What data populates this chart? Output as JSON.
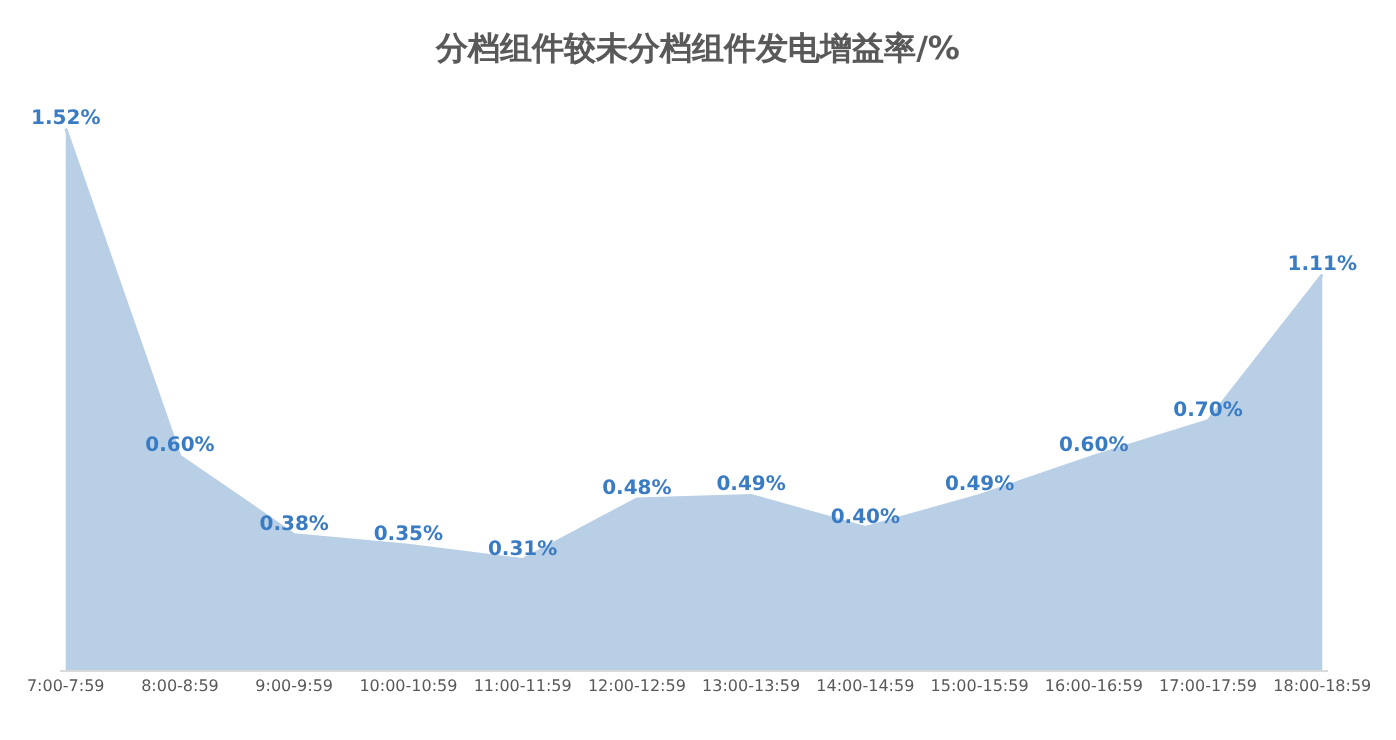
{
  "chart_data": {
    "type": "area",
    "title": "分档组件较未分档组件发电增益率/%",
    "categories": [
      "7:00-7:59",
      "8:00-8:59",
      "9:00-9:59",
      "10:00-10:59",
      "11:00-11:59",
      "12:00-12:59",
      "13:00-13:59",
      "14:00-14:59",
      "15:00-15:59",
      "16:00-16:59",
      "17:00-17:59",
      "18:00-18:59"
    ],
    "values": [
      1.52,
      0.6,
      0.38,
      0.35,
      0.31,
      0.48,
      0.49,
      0.4,
      0.49,
      0.6,
      0.7,
      1.11
    ],
    "value_labels": [
      "1.52%",
      "0.60%",
      "0.38%",
      "0.35%",
      "0.31%",
      "0.48%",
      "0.49%",
      "0.40%",
      "0.49%",
      "0.60%",
      "0.70%",
      "1.11%"
    ],
    "color": "#b8cfe6",
    "tick_labels": "x"
  }
}
